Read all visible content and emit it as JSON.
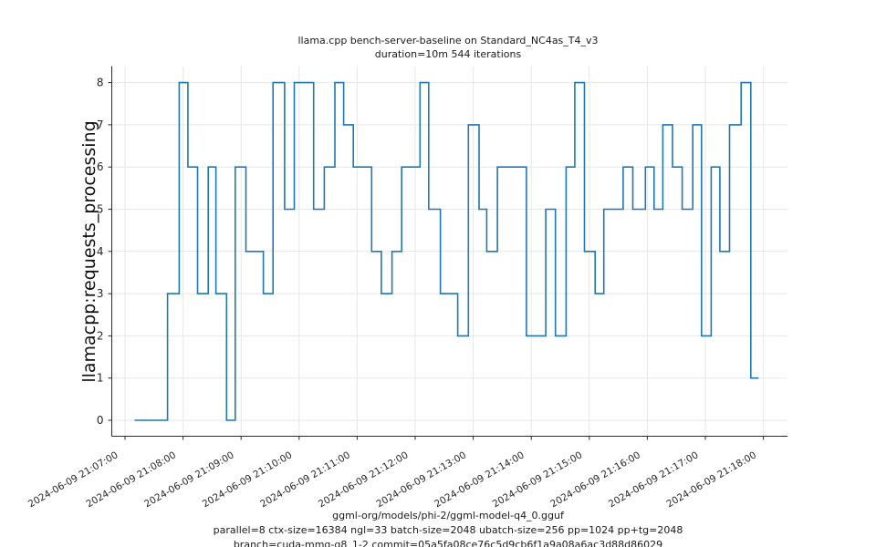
{
  "figure": {
    "title_line1": "llama.cpp bench-server-baseline on Standard_NC4as_T4_v3",
    "title_line2": "duration=10m 544 iterations",
    "ylabel": "llamacpp:requests_processing",
    "captions": [
      "ggml-org/models/phi-2/ggml-model-q4_0.gguf",
      "parallel=8 ctx-size=16384 ngl=33 batch-size=2048 ubatch-size=256 pp=1024 pp+tg=2048",
      "branch=cuda-mmq-q8_1-2 commit=05a5fa08ce76c5d9cb6f1a9a08a6ac3d88d86029"
    ]
  },
  "chart_data": {
    "type": "line",
    "step_mode": "post",
    "title": "llama.cpp bench-server-baseline on Standard_NC4as_T4_v3\nduration=10m 544 iterations",
    "xlabel": "ggml-org/models/phi-2/ggml-model-q4_0.gguf\nparallel=8 ctx-size=16384 ngl=33 batch-size=2048 ubatch-size=256 pp=1024 pp+tg=2048\nbranch=cuda-mmq-q8_1-2 commit=05a5fa08ce76c5d9cb6f1a9a08a6ac3d88d86029",
    "ylabel": "llamacpp:requests_processing",
    "date": "2024-06-09",
    "x_tick_labels": [
      "2024-06-09 21:07:00",
      "2024-06-09 21:08:00",
      "2024-06-09 21:09:00",
      "2024-06-09 21:10:00",
      "2024-06-09 21:11:00",
      "2024-06-09 21:12:00",
      "2024-06-09 21:13:00",
      "2024-06-09 21:14:00",
      "2024-06-09 21:15:00",
      "2024-06-09 21:16:00",
      "2024-06-09 21:17:00",
      "2024-06-09 21:18:00"
    ],
    "y_ticks": [
      0,
      1,
      2,
      3,
      4,
      5,
      6,
      7,
      8
    ],
    "ylim": [
      -0.42,
      8.4
    ],
    "xlim": [
      "21:06:43",
      "21:18:25"
    ],
    "grid": true,
    "legend": "none",
    "line_color": "#1f77b4",
    "grid_color": "#e7e7e7",
    "axis_color": "#2b2b2b",
    "steps": [
      [
        "21:07:10",
        0
      ],
      [
        "21:07:44",
        3
      ],
      [
        "21:07:56",
        8
      ],
      [
        "21:08:05",
        6
      ],
      [
        "21:08:15",
        3
      ],
      [
        "21:08:26",
        6
      ],
      [
        "21:08:34",
        3
      ],
      [
        "21:08:45",
        0
      ],
      [
        "21:08:54",
        6
      ],
      [
        "21:09:05",
        4
      ],
      [
        "21:09:23",
        3
      ],
      [
        "21:09:33",
        8
      ],
      [
        "21:09:45",
        5
      ],
      [
        "21:09:55",
        8
      ],
      [
        "21:10:15",
        5
      ],
      [
        "21:10:26",
        6
      ],
      [
        "21:10:37",
        8
      ],
      [
        "21:10:46",
        7
      ],
      [
        "21:10:56",
        6
      ],
      [
        "21:11:15",
        4
      ],
      [
        "21:11:25",
        3
      ],
      [
        "21:11:36",
        4
      ],
      [
        "21:11:46",
        6
      ],
      [
        "21:12:05",
        8
      ],
      [
        "21:12:14",
        5
      ],
      [
        "21:12:26",
        3
      ],
      [
        "21:12:44",
        2
      ],
      [
        "21:12:55",
        7
      ],
      [
        "21:13:06",
        5
      ],
      [
        "21:13:14",
        4
      ],
      [
        "21:13:25",
        6
      ],
      [
        "21:13:55",
        2
      ],
      [
        "21:14:15",
        5
      ],
      [
        "21:14:25",
        2
      ],
      [
        "21:14:36",
        6
      ],
      [
        "21:14:45",
        8
      ],
      [
        "21:14:55",
        4
      ],
      [
        "21:15:06",
        3
      ],
      [
        "21:15:15",
        5
      ],
      [
        "21:15:35",
        6
      ],
      [
        "21:15:45",
        5
      ],
      [
        "21:15:58",
        6
      ],
      [
        "21:16:07",
        5
      ],
      [
        "21:16:16",
        7
      ],
      [
        "21:16:26",
        6
      ],
      [
        "21:16:36",
        5
      ],
      [
        "21:16:47",
        7
      ],
      [
        "21:16:56",
        2
      ],
      [
        "21:17:06",
        6
      ],
      [
        "21:17:15",
        4
      ],
      [
        "21:17:25",
        7
      ],
      [
        "21:17:37",
        8
      ],
      [
        "21:17:47",
        1
      ]
    ],
    "end_time": "21:17:55"
  }
}
